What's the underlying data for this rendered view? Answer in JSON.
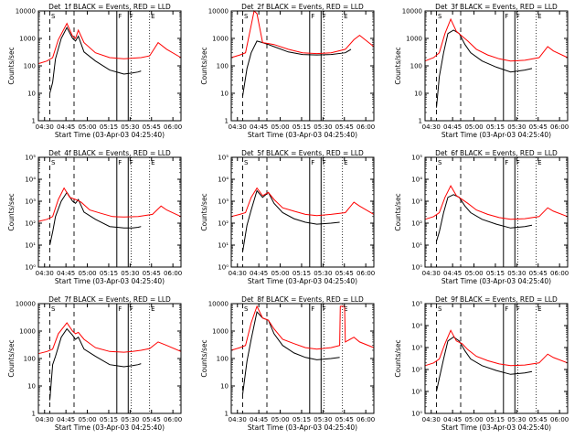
{
  "figure": {
    "xlabel": "Start Time (03-Apr-03 04:25:40)",
    "ylabel": "Counts/sec",
    "x_ticks": [
      "04:30",
      "04:45",
      "05:00",
      "05:15",
      "05:30",
      "05:45",
      "06:00"
    ],
    "colors": {
      "events": "#000000",
      "lld": "#ff0000",
      "background": "#ffffff"
    }
  },
  "chart_data": [
    {
      "type": "line",
      "title": "Det_1f BLACK = Events, RED = LLD",
      "x_range_minutes": [
        0,
        100
      ],
      "y_scale": "log",
      "y_range": [
        1,
        10000
      ],
      "y_tick_style": "plain",
      "y_ticks": [
        "1",
        "10",
        "100",
        "1000",
        "10000"
      ],
      "markers": {
        "dashed": [
          8,
          25
        ],
        "solid": [
          55,
          63
        ],
        "dotted": [
          65,
          78
        ],
        "bracket_labels": [
          "S",
          "F",
          "F",
          "E"
        ]
      },
      "series": [
        {
          "name": "Events",
          "color": "#000000",
          "x": [
            8,
            10,
            12,
            16,
            20,
            24,
            26,
            28,
            32,
            40,
            50,
            60,
            66,
            70,
            72
          ],
          "y": [
            10,
            25,
            180,
            1000,
            2500,
            1000,
            800,
            1200,
            320,
            150,
            70,
            50,
            55,
            60,
            65
          ]
        },
        {
          "name": "LLD",
          "color": "#ff0000",
          "x": [
            0,
            6,
            10,
            14,
            20,
            24,
            26,
            28,
            32,
            40,
            50,
            60,
            66,
            72,
            78,
            84,
            90,
            100
          ],
          "y": [
            120,
            150,
            200,
            900,
            3500,
            1200,
            1000,
            2000,
            700,
            300,
            200,
            180,
            190,
            200,
            230,
            700,
            400,
            200
          ]
        }
      ]
    },
    {
      "type": "line",
      "title": "Det_2f BLACK = Events, RED = LLD",
      "x_range_minutes": [
        0,
        100
      ],
      "y_scale": "log",
      "y_range": [
        1,
        10000
      ],
      "y_tick_style": "plain",
      "y_ticks": [
        "1",
        "10",
        "100",
        "1000",
        "10000"
      ],
      "markers": {
        "dashed": [
          8,
          25
        ],
        "solid": [
          55,
          63
        ],
        "dotted": [
          65,
          78
        ],
        "bracket_labels": [
          "S",
          "F",
          "F",
          "E"
        ]
      },
      "series": [
        {
          "name": "Events",
          "color": "#000000",
          "x": [
            8,
            11,
            14,
            18,
            22,
            26,
            30,
            40,
            50,
            60,
            70,
            80,
            84
          ],
          "y": [
            8,
            80,
            300,
            800,
            700,
            600,
            500,
            320,
            260,
            250,
            260,
            300,
            400
          ]
        },
        {
          "name": "LLD",
          "color": "#ff0000",
          "x": [
            0,
            6,
            10,
            14,
            16,
            18,
            22,
            26,
            30,
            40,
            50,
            60,
            70,
            80,
            86,
            90,
            100
          ],
          "y": [
            200,
            250,
            300,
            3000,
            10000,
            8000,
            700,
            650,
            600,
            400,
            300,
            280,
            300,
            400,
            900,
            1300,
            500
          ]
        }
      ]
    },
    {
      "type": "line",
      "title": "Det_3f BLACK = Events, RED = LLD",
      "x_range_minutes": [
        0,
        100
      ],
      "y_scale": "log",
      "y_range": [
        1,
        10000
      ],
      "y_tick_style": "plain",
      "y_ticks": [
        "1",
        "10",
        "100",
        "1000",
        "10000"
      ],
      "markers": {
        "dashed": [
          8,
          25
        ],
        "solid": [
          55,
          63
        ],
        "dotted": [
          65,
          78
        ],
        "bracket_labels": [
          "S",
          "F",
          "F",
          "E"
        ]
      },
      "series": [
        {
          "name": "Events",
          "color": "#000000",
          "x": [
            8,
            10,
            13,
            16,
            20,
            24,
            28,
            32,
            40,
            50,
            60,
            70,
            75
          ],
          "y": [
            3,
            40,
            300,
            1500,
            2000,
            1500,
            600,
            300,
            150,
            90,
            60,
            70,
            80
          ]
        },
        {
          "name": "LLD",
          "color": "#ff0000",
          "x": [
            0,
            6,
            10,
            14,
            18,
            22,
            26,
            30,
            36,
            44,
            52,
            60,
            70,
            80,
            86,
            90,
            100
          ],
          "y": [
            150,
            200,
            300,
            1500,
            5000,
            1800,
            1200,
            800,
            400,
            250,
            180,
            150,
            160,
            200,
            500,
            350,
            200
          ]
        }
      ]
    },
    {
      "type": "line",
      "title": "Det_4f BLACK = Events, RED = LLD",
      "x_range_minutes": [
        0,
        100
      ],
      "y_scale": "log",
      "y_range": [
        1,
        100000
      ],
      "y_tick_style": "power",
      "y_ticks": [
        "10⁰",
        "10¹",
        "10²",
        "10³",
        "10⁴",
        "10⁵"
      ],
      "markers": {
        "dashed": [
          8,
          25
        ],
        "solid": [
          55,
          63
        ],
        "dotted": [
          65,
          78
        ],
        "bracket_labels": [
          "S",
          "F",
          "F",
          "E"
        ]
      },
      "series": [
        {
          "name": "Events",
          "color": "#000000",
          "x": [
            8,
            10,
            12,
            16,
            20,
            24,
            26,
            28,
            32,
            40,
            50,
            60,
            66,
            70,
            72
          ],
          "y": [
            10,
            40,
            200,
            1000,
            2500,
            1000,
            800,
            1200,
            320,
            150,
            70,
            60,
            60,
            65,
            70
          ]
        },
        {
          "name": "LLD",
          "color": "#ff0000",
          "x": [
            0,
            6,
            10,
            14,
            18,
            22,
            26,
            30,
            36,
            44,
            52,
            60,
            70,
            80,
            86,
            90,
            100
          ],
          "y": [
            120,
            150,
            200,
            1200,
            4000,
            1500,
            1200,
            900,
            400,
            280,
            200,
            190,
            200,
            250,
            600,
            400,
            200
          ]
        }
      ]
    },
    {
      "type": "line",
      "title": "Det_5f BLACK = Events, RED = LLD",
      "x_range_minutes": [
        0,
        100
      ],
      "y_scale": "log",
      "y_range": [
        1,
        100000
      ],
      "y_tick_style": "power",
      "y_ticks": [
        "10⁰",
        "10¹",
        "10²",
        "10³",
        "10⁴",
        "10⁵"
      ],
      "markers": {
        "dashed": [
          8,
          25
        ],
        "solid": [
          55,
          63
        ],
        "dotted": [
          65,
          78
        ],
        "bracket_labels": [
          "S",
          "F",
          "F",
          "E"
        ]
      },
      "series": [
        {
          "name": "Events",
          "color": "#000000",
          "x": [
            8,
            11,
            14,
            18,
            22,
            26,
            30,
            36,
            44,
            52,
            60,
            70,
            76
          ],
          "y": [
            5,
            80,
            400,
            3000,
            1500,
            2500,
            800,
            300,
            160,
            110,
            90,
            100,
            110
          ]
        },
        {
          "name": "LLD",
          "color": "#ff0000",
          "x": [
            0,
            6,
            10,
            14,
            18,
            22,
            26,
            30,
            36,
            44,
            52,
            60,
            70,
            80,
            86,
            90,
            100
          ],
          "y": [
            200,
            250,
            300,
            1500,
            4000,
            1800,
            2500,
            1200,
            500,
            350,
            250,
            220,
            250,
            300,
            900,
            600,
            250
          ]
        }
      ]
    },
    {
      "type": "line",
      "title": "Det_6f BLACK = Events, RED = LLD",
      "x_range_minutes": [
        0,
        100
      ],
      "y_scale": "log",
      "y_range": [
        1,
        100000
      ],
      "y_tick_style": "power",
      "y_ticks": [
        "10⁰",
        "10¹",
        "10²",
        "10³",
        "10⁴",
        "10⁵"
      ],
      "markers": {
        "dashed": [
          8,
          25
        ],
        "solid": [
          55,
          63
        ],
        "dotted": [
          65,
          78
        ],
        "bracket_labels": [
          "S",
          "F",
          "F",
          "E"
        ]
      },
      "series": [
        {
          "name": "Events",
          "color": "#000000",
          "x": [
            8,
            10,
            13,
            16,
            20,
            24,
            28,
            32,
            40,
            50,
            60,
            70,
            75
          ],
          "y": [
            15,
            40,
            300,
            1500,
            2000,
            1500,
            600,
            300,
            150,
            90,
            60,
            70,
            80
          ]
        },
        {
          "name": "LLD",
          "color": "#ff0000",
          "x": [
            0,
            6,
            10,
            14,
            18,
            22,
            26,
            30,
            36,
            44,
            52,
            60,
            70,
            80,
            86,
            90,
            100
          ],
          "y": [
            150,
            200,
            300,
            1500,
            5000,
            1800,
            1200,
            800,
            400,
            250,
            180,
            150,
            160,
            200,
            500,
            350,
            200
          ]
        }
      ]
    },
    {
      "type": "line",
      "title": "Det_7f BLACK = Events, RED = LLD",
      "x_range_minutes": [
        0,
        100
      ],
      "y_scale": "log",
      "y_range": [
        1,
        10000
      ],
      "y_tick_style": "plain",
      "y_ticks": [
        "1",
        "10",
        "100",
        "1000",
        "10000"
      ],
      "markers": {
        "dashed": [
          8,
          25
        ],
        "solid": [
          55,
          63
        ],
        "dotted": [
          65,
          78
        ],
        "bracket_labels": [
          "S",
          "F",
          "F",
          "E"
        ]
      },
      "series": [
        {
          "name": "Events",
          "color": "#000000",
          "x": [
            8,
            10,
            12,
            16,
            20,
            24,
            26,
            28,
            32,
            40,
            50,
            60,
            66,
            70,
            72
          ],
          "y": [
            3,
            60,
            120,
            600,
            1200,
            700,
            500,
            600,
            220,
            120,
            60,
            50,
            55,
            60,
            65
          ]
        },
        {
          "name": "LLD",
          "color": "#ff0000",
          "x": [
            0,
            6,
            10,
            14,
            20,
            24,
            26,
            28,
            32,
            40,
            50,
            60,
            66,
            72,
            78,
            84,
            90,
            100
          ],
          "y": [
            150,
            180,
            220,
            800,
            2000,
            1000,
            800,
            900,
            500,
            250,
            180,
            170,
            180,
            200,
            230,
            400,
            300,
            180
          ]
        }
      ]
    },
    {
      "type": "line",
      "title": "Det_8f BLACK = Events, RED = LLD",
      "x_range_minutes": [
        0,
        100
      ],
      "y_scale": "log",
      "y_range": [
        1,
        10000
      ],
      "y_tick_style": "plain",
      "y_ticks": [
        "1",
        "10",
        "100",
        "1000",
        "10000"
      ],
      "markers": {
        "dashed": [
          8,
          25
        ],
        "solid": [
          55,
          63
        ],
        "dotted": [
          65,
          78
        ],
        "bracket_labels": [
          "S",
          "F",
          "F",
          "E"
        ]
      },
      "series": [
        {
          "name": "Events",
          "color": "#000000",
          "x": [
            8,
            11,
            14,
            18,
            22,
            26,
            30,
            36,
            44,
            52,
            60,
            70,
            76
          ],
          "y": [
            5,
            80,
            500,
            5000,
            3000,
            2500,
            800,
            300,
            160,
            110,
            90,
            100,
            110
          ]
        },
        {
          "name": "LLD",
          "color": "#ff0000",
          "x": [
            0,
            6,
            10,
            14,
            18,
            22,
            26,
            30,
            36,
            44,
            52,
            60,
            70,
            76,
            76.5,
            79.5,
            80,
            86,
            90,
            100
          ],
          "y": [
            200,
            250,
            300,
            2000,
            8000,
            3000,
            2500,
            1200,
            500,
            350,
            250,
            220,
            250,
            300,
            8000,
            8000,
            400,
            600,
            400,
            250
          ]
        }
      ]
    },
    {
      "type": "line",
      "title": "Det_9f BLACK = Events, RED = LLD",
      "x_range_minutes": [
        0,
        100
      ],
      "y_scale": "log",
      "y_range": [
        1,
        100000
      ],
      "y_tick_style": "power",
      "y_ticks": [
        "10⁰",
        "10¹",
        "10²",
        "10³",
        "10⁴",
        "10⁵"
      ],
      "markers": {
        "dashed": [
          8,
          25
        ],
        "solid": [
          55,
          63
        ],
        "dotted": [
          65,
          78
        ],
        "bracket_labels": [
          "S",
          "F",
          "F",
          "E"
        ]
      },
      "series": [
        {
          "name": "Events",
          "color": "#000000",
          "x": [
            8,
            10,
            13,
            16,
            20,
            24,
            28,
            32,
            40,
            50,
            60,
            70,
            75
          ],
          "y": [
            10,
            40,
            300,
            2000,
            3000,
            2000,
            700,
            300,
            150,
            90,
            60,
            70,
            80
          ]
        },
        {
          "name": "LLD",
          "color": "#ff0000",
          "x": [
            0,
            6,
            10,
            14,
            18,
            22,
            26,
            30,
            36,
            44,
            52,
            60,
            70,
            80,
            86,
            90,
            100
          ],
          "y": [
            150,
            200,
            300,
            1500,
            6000,
            2000,
            1500,
            800,
            400,
            250,
            180,
            150,
            160,
            200,
            500,
            350,
            200
          ]
        }
      ]
    }
  ]
}
